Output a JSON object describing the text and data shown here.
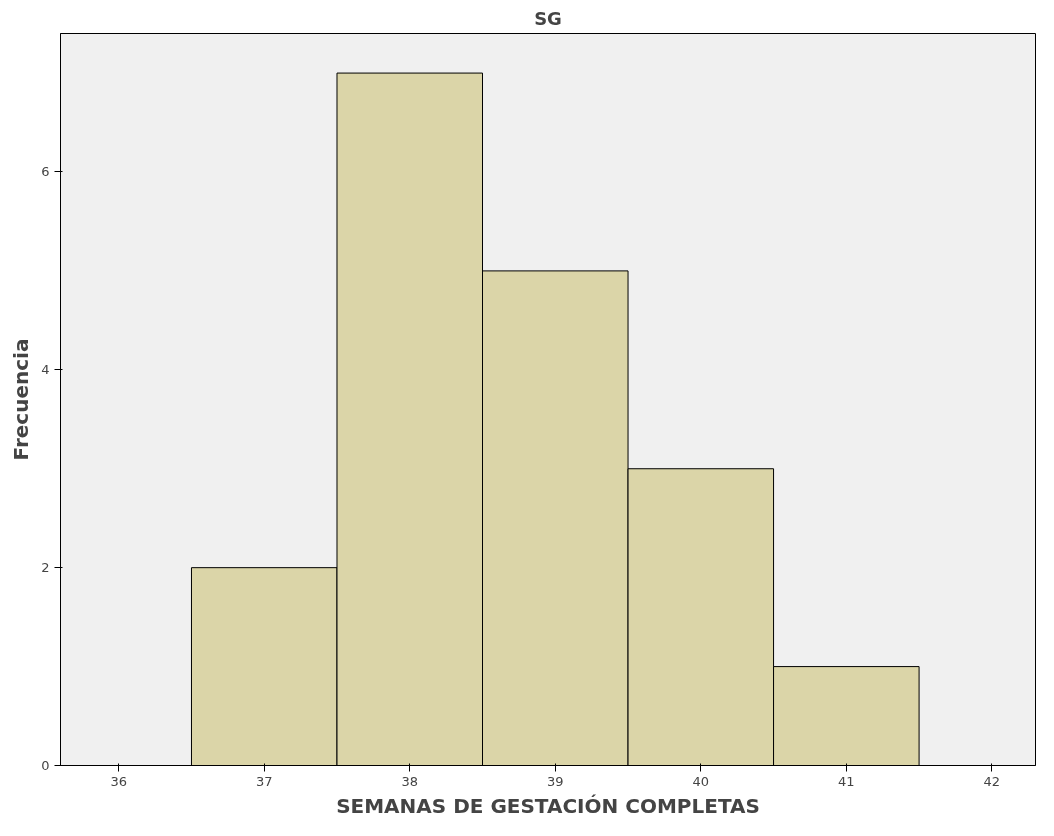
{
  "chart_data": {
    "type": "histogram",
    "title": "SG",
    "xlabel": "SEMANAS DE GESTACIÓN COMPLETAS",
    "ylabel": "Frecuencia",
    "bins": [
      36.5,
      37.5,
      38.5,
      39.5,
      40.5,
      41.5
    ],
    "values": [
      2,
      7,
      5,
      3,
      1
    ],
    "color": "#dbd5a8",
    "xlim": [
      35.6,
      42.3
    ],
    "xticks": [
      36,
      37,
      38,
      39,
      40,
      41,
      42
    ],
    "ylim": [
      0,
      7.4
    ],
    "yticks": [
      0,
      2,
      4,
      6
    ],
    "grid": false
  }
}
